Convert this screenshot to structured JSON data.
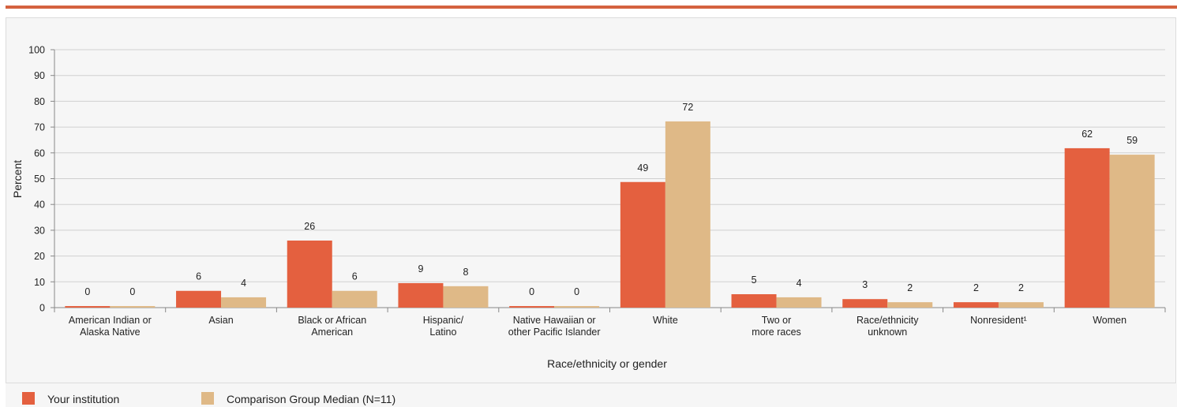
{
  "colors": {
    "accent": "#d4623f",
    "series1": "#e4603f",
    "series2": "#dfb987",
    "grid": "#d0d0d0",
    "panel": "#f6f6f6"
  },
  "chart_data": {
    "type": "bar",
    "xlabel": "Race/ethnicity or gender",
    "ylabel": "Percent",
    "ylim": [
      0,
      100
    ],
    "yticks": [
      0,
      10,
      20,
      30,
      40,
      50,
      60,
      70,
      80,
      90,
      100
    ],
    "grid": true,
    "legend_position": "bottom-left",
    "categories": [
      [
        "American Indian or",
        "Alaska Native"
      ],
      [
        "Asian"
      ],
      [
        "Black or African",
        "American"
      ],
      [
        "Hispanic/",
        "Latino"
      ],
      [
        "Native Hawaiian or",
        "other Pacific Islander"
      ],
      [
        "White"
      ],
      [
        "Two or",
        "more races"
      ],
      [
        "Race/ethnicity",
        "unknown"
      ],
      [
        "Nonresident¹"
      ],
      [
        "Women"
      ]
    ],
    "series": [
      {
        "name": "Your institution",
        "values": [
          0,
          6,
          26,
          9,
          0,
          49,
          5,
          3,
          2,
          62
        ],
        "labels": [
          "0",
          "6",
          "26",
          "9",
          "0",
          "49",
          "5",
          "3",
          "2",
          "62"
        ],
        "heights": [
          0.6,
          6.5,
          26,
          9.5,
          0.6,
          48.7,
          5.2,
          3.3,
          2.1,
          61.8
        ]
      },
      {
        "name": "Comparison Group Median (N=11)",
        "values": [
          0,
          4,
          6,
          8,
          0,
          72,
          4,
          2,
          2,
          59
        ],
        "labels": [
          "0",
          "4",
          "6",
          "8",
          "0",
          "72",
          "4",
          "2",
          "2",
          "59"
        ],
        "heights": [
          0.6,
          4.0,
          6.5,
          8.3,
          0.6,
          72.2,
          4.0,
          2.1,
          2.1,
          59.3
        ]
      }
    ]
  }
}
